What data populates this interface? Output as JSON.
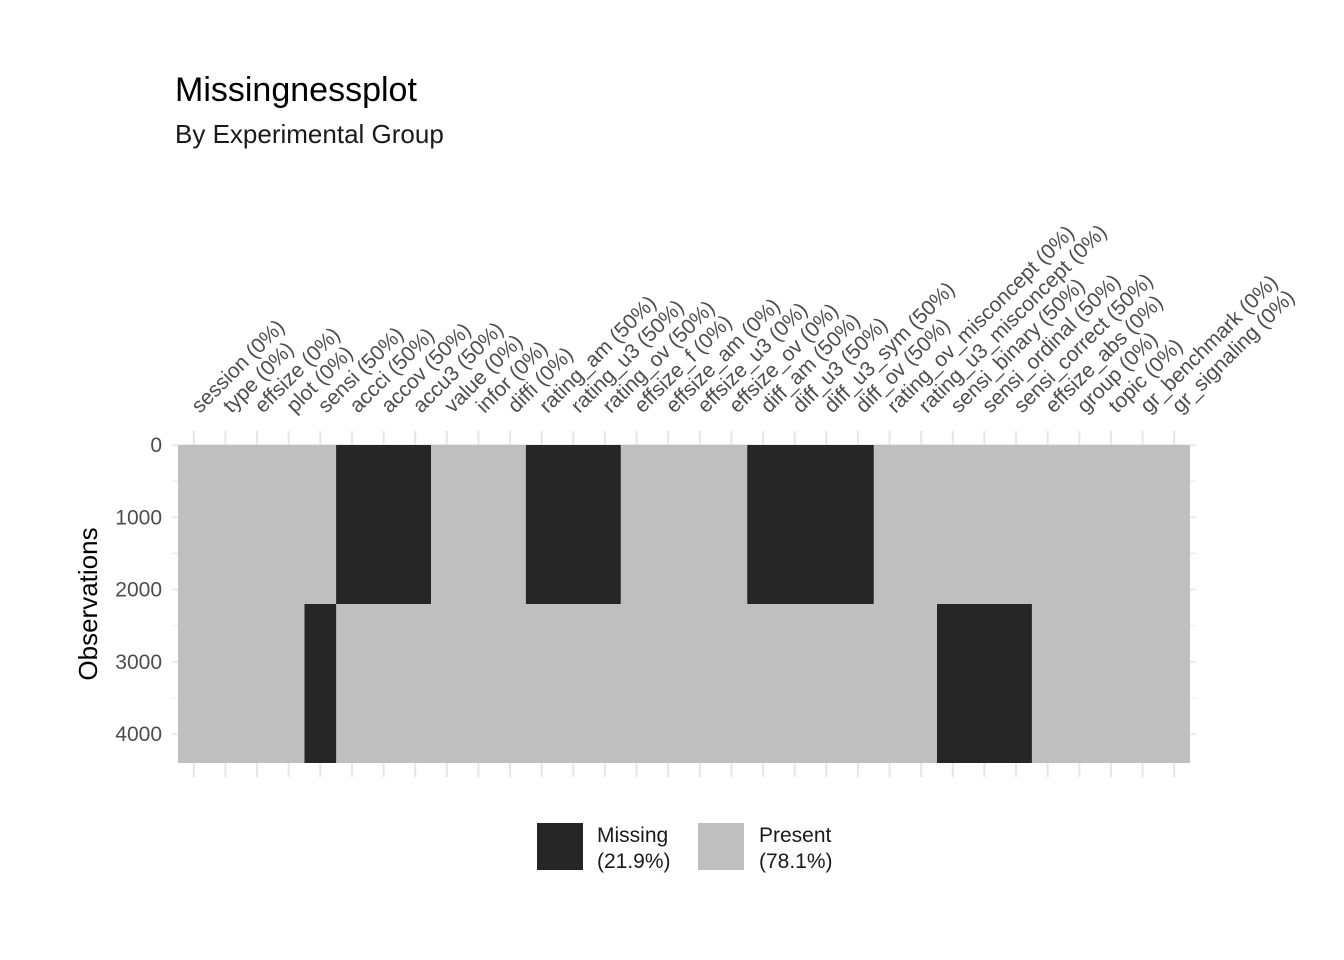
{
  "chart_data": {
    "type": "heatmap",
    "title": "Missingnessplot",
    "subtitle": "By Experimental Group",
    "ylabel": "Observations",
    "ylim": [
      0,
      4400
    ],
    "yticks": [
      0,
      1000,
      2000,
      3000,
      4000
    ],
    "columns": [
      "session (0%)",
      "type (0%)",
      "effsize (0%)",
      "plot (0%)",
      "sensi (50%)",
      "accci (50%)",
      "accov (50%)",
      "accu3 (50%)",
      "value (0%)",
      "infor (0%)",
      "diffi (0%)",
      "rating_am (50%)",
      "rating_u3 (50%)",
      "rating_ov (50%)",
      "effsize_f (0%)",
      "effsize_am (0%)",
      "effsize_u3 (0%)",
      "effsize_ov (0%)",
      "diff_am (50%)",
      "diff_u3 (50%)",
      "diff_u3_sym (50%)",
      "diff_ov (50%)",
      "rating_ov_misconcept (0%)",
      "rating_u3_misconcept (0%)",
      "sensi_binary (50%)",
      "sensi_ordinal (50%)",
      "sensi_correct (50%)",
      "effsize_abs (0%)",
      "group (0%)",
      "topic (0%)",
      "gr_benchmark (0%)",
      "gr_signaling (0%)"
    ],
    "missing_blocks": [
      {
        "col_start": 4,
        "col_end": 4,
        "row_start": 2200,
        "row_end": 4400
      },
      {
        "col_start": 5,
        "col_end": 7,
        "row_start": 0,
        "row_end": 2200
      },
      {
        "col_start": 11,
        "col_end": 13,
        "row_start": 0,
        "row_end": 2200
      },
      {
        "col_start": 18,
        "col_end": 21,
        "row_start": 0,
        "row_end": 2200
      },
      {
        "col_start": 24,
        "col_end": 26,
        "row_start": 2200,
        "row_end": 4400
      }
    ],
    "legend": [
      {
        "label": "Missing",
        "pct": "(21.9%)",
        "color": "#262626"
      },
      {
        "label": "Present",
        "pct": "(78.1%)",
        "color": "#bfbfbf"
      }
    ],
    "legend_position": "bottom",
    "grid": true
  }
}
